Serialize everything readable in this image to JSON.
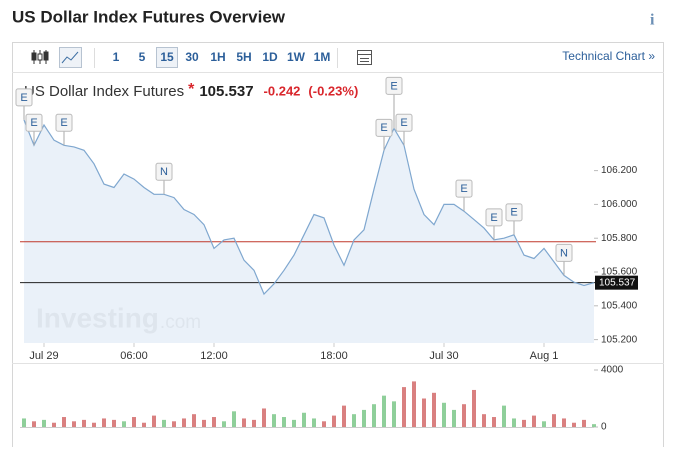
{
  "header": {
    "title": "US Dollar Index Futures Overview",
    "info_icon": "i"
  },
  "toolbar": {
    "intervals": [
      "1",
      "5",
      "15",
      "30",
      "1H",
      "5H",
      "1D",
      "1W",
      "1M"
    ],
    "active": "15",
    "link": "Technical Chart »"
  },
  "quote": {
    "name": "US Dollar Index Futures",
    "marker": "*",
    "price": 105.537,
    "change": -0.242,
    "change_percent": "(-0.23%)"
  },
  "watermark": {
    "brand": "Investing",
    "suffix": ".com"
  },
  "chart_data": {
    "type": "line",
    "categories": [
      null,
      null,
      "Jul 29",
      null,
      null,
      null,
      null,
      null,
      null,
      null,
      null,
      "06:00",
      null,
      null,
      null,
      null,
      null,
      null,
      null,
      "12:00",
      null,
      null,
      null,
      null,
      null,
      null,
      null,
      null,
      null,
      null,
      null,
      "18:00",
      null,
      null,
      null,
      null,
      null,
      null,
      null,
      null,
      null,
      null,
      "Jul 30",
      null,
      null,
      null,
      null,
      null,
      null,
      null,
      null,
      null,
      "Aug 1",
      null,
      null,
      null,
      null,
      null
    ],
    "series": [
      {
        "name": "US Dollar Index Futures",
        "color": "#7fa7cf",
        "values": [
          106.5,
          106.35,
          106.47,
          106.38,
          106.35,
          106.34,
          106.32,
          106.24,
          106.12,
          106.1,
          106.18,
          106.15,
          106.1,
          106.06,
          106.06,
          106.04,
          105.97,
          105.94,
          105.88,
          105.74,
          105.79,
          105.8,
          105.67,
          105.61,
          105.47,
          105.53,
          105.61,
          105.7,
          105.82,
          105.94,
          105.92,
          105.76,
          105.64,
          105.79,
          105.85,
          106.09,
          106.32,
          106.45,
          106.35,
          106.09,
          105.94,
          105.88,
          106.0,
          106.0,
          105.96,
          105.91,
          105.86,
          105.79,
          105.8,
          105.82,
          105.7,
          105.68,
          105.74,
          105.66,
          105.58,
          105.54,
          105.52,
          105.537
        ]
      }
    ],
    "ylim": [
      105.18,
      106.6
    ],
    "yticks": [
      {
        "value": 106.2,
        "label": "106.200"
      },
      {
        "value": 106.0,
        "label": "106.000"
      },
      {
        "value": 105.8,
        "label": "105.800"
      },
      {
        "value": 105.6,
        "label": "105.600"
      },
      {
        "value": 105.4,
        "label": "105.400"
      },
      {
        "value": 105.2,
        "label": "105.200"
      }
    ],
    "prev_close": 105.779,
    "prev_close_color": "#c0392b",
    "last_price": {
      "value": 105.537,
      "label": "105.537"
    },
    "grid": false,
    "events": [
      {
        "label": "E"
      },
      {
        "label": "E"
      },
      {
        "label": "E"
      },
      {
        "label": "N"
      },
      {
        "label": "E"
      },
      {
        "label": "E"
      },
      {
        "label": "E"
      },
      {
        "label": "E"
      },
      {
        "label": "E"
      },
      {
        "label": "E"
      },
      {
        "label": "N"
      }
    ],
    "volume": {
      "values": [
        600,
        400,
        500,
        300,
        700,
        400,
        500,
        300,
        600,
        500,
        400,
        700,
        300,
        800,
        500,
        400,
        600,
        900,
        500,
        700,
        400,
        1100,
        600,
        500,
        1300,
        900,
        700,
        500,
        1000,
        600,
        400,
        800,
        1500,
        900,
        1200,
        1600,
        2200,
        1800,
        2800,
        3200,
        2000,
        2400,
        1700,
        1200,
        1600,
        2600,
        900,
        700,
        1500,
        600,
        500,
        800,
        400,
        900,
        600,
        300,
        500,
        200
      ],
      "up_color": "#8fcf9a",
      "down_color": "#d98080",
      "ylim": [
        0,
        4000
      ],
      "yticks": [
        4000,
        0
      ]
    }
  }
}
